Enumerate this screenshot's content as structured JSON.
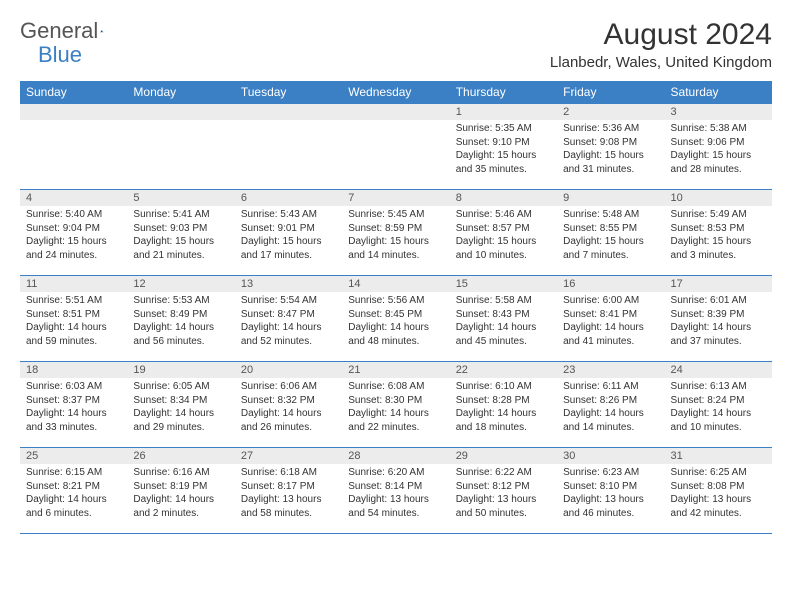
{
  "logo": {
    "text1": "General",
    "text2": "Blue"
  },
  "title": "August 2024",
  "location": "Llanbedr, Wales, United Kingdom",
  "colors": {
    "accent": "#3b7fc4",
    "header_bg": "#3b7fc4",
    "daynum_bg": "#ececec",
    "text": "#333333"
  },
  "day_headers": [
    "Sunday",
    "Monday",
    "Tuesday",
    "Wednesday",
    "Thursday",
    "Friday",
    "Saturday"
  ],
  "weeks": [
    [
      null,
      null,
      null,
      null,
      {
        "n": "1",
        "sr": "5:35 AM",
        "ss": "9:10 PM",
        "dl": "15 hours and 35 minutes."
      },
      {
        "n": "2",
        "sr": "5:36 AM",
        "ss": "9:08 PM",
        "dl": "15 hours and 31 minutes."
      },
      {
        "n": "3",
        "sr": "5:38 AM",
        "ss": "9:06 PM",
        "dl": "15 hours and 28 minutes."
      }
    ],
    [
      {
        "n": "4",
        "sr": "5:40 AM",
        "ss": "9:04 PM",
        "dl": "15 hours and 24 minutes."
      },
      {
        "n": "5",
        "sr": "5:41 AM",
        "ss": "9:03 PM",
        "dl": "15 hours and 21 minutes."
      },
      {
        "n": "6",
        "sr": "5:43 AM",
        "ss": "9:01 PM",
        "dl": "15 hours and 17 minutes."
      },
      {
        "n": "7",
        "sr": "5:45 AM",
        "ss": "8:59 PM",
        "dl": "15 hours and 14 minutes."
      },
      {
        "n": "8",
        "sr": "5:46 AM",
        "ss": "8:57 PM",
        "dl": "15 hours and 10 minutes."
      },
      {
        "n": "9",
        "sr": "5:48 AM",
        "ss": "8:55 PM",
        "dl": "15 hours and 7 minutes."
      },
      {
        "n": "10",
        "sr": "5:49 AM",
        "ss": "8:53 PM",
        "dl": "15 hours and 3 minutes."
      }
    ],
    [
      {
        "n": "11",
        "sr": "5:51 AM",
        "ss": "8:51 PM",
        "dl": "14 hours and 59 minutes."
      },
      {
        "n": "12",
        "sr": "5:53 AM",
        "ss": "8:49 PM",
        "dl": "14 hours and 56 minutes."
      },
      {
        "n": "13",
        "sr": "5:54 AM",
        "ss": "8:47 PM",
        "dl": "14 hours and 52 minutes."
      },
      {
        "n": "14",
        "sr": "5:56 AM",
        "ss": "8:45 PM",
        "dl": "14 hours and 48 minutes."
      },
      {
        "n": "15",
        "sr": "5:58 AM",
        "ss": "8:43 PM",
        "dl": "14 hours and 45 minutes."
      },
      {
        "n": "16",
        "sr": "6:00 AM",
        "ss": "8:41 PM",
        "dl": "14 hours and 41 minutes."
      },
      {
        "n": "17",
        "sr": "6:01 AM",
        "ss": "8:39 PM",
        "dl": "14 hours and 37 minutes."
      }
    ],
    [
      {
        "n": "18",
        "sr": "6:03 AM",
        "ss": "8:37 PM",
        "dl": "14 hours and 33 minutes."
      },
      {
        "n": "19",
        "sr": "6:05 AM",
        "ss": "8:34 PM",
        "dl": "14 hours and 29 minutes."
      },
      {
        "n": "20",
        "sr": "6:06 AM",
        "ss": "8:32 PM",
        "dl": "14 hours and 26 minutes."
      },
      {
        "n": "21",
        "sr": "6:08 AM",
        "ss": "8:30 PM",
        "dl": "14 hours and 22 minutes."
      },
      {
        "n": "22",
        "sr": "6:10 AM",
        "ss": "8:28 PM",
        "dl": "14 hours and 18 minutes."
      },
      {
        "n": "23",
        "sr": "6:11 AM",
        "ss": "8:26 PM",
        "dl": "14 hours and 14 minutes."
      },
      {
        "n": "24",
        "sr": "6:13 AM",
        "ss": "8:24 PM",
        "dl": "14 hours and 10 minutes."
      }
    ],
    [
      {
        "n": "25",
        "sr": "6:15 AM",
        "ss": "8:21 PM",
        "dl": "14 hours and 6 minutes."
      },
      {
        "n": "26",
        "sr": "6:16 AM",
        "ss": "8:19 PM",
        "dl": "14 hours and 2 minutes."
      },
      {
        "n": "27",
        "sr": "6:18 AM",
        "ss": "8:17 PM",
        "dl": "13 hours and 58 minutes."
      },
      {
        "n": "28",
        "sr": "6:20 AM",
        "ss": "8:14 PM",
        "dl": "13 hours and 54 minutes."
      },
      {
        "n": "29",
        "sr": "6:22 AM",
        "ss": "8:12 PM",
        "dl": "13 hours and 50 minutes."
      },
      {
        "n": "30",
        "sr": "6:23 AM",
        "ss": "8:10 PM",
        "dl": "13 hours and 46 minutes."
      },
      {
        "n": "31",
        "sr": "6:25 AM",
        "ss": "8:08 PM",
        "dl": "13 hours and 42 minutes."
      }
    ]
  ],
  "labels": {
    "sunrise": "Sunrise:",
    "sunset": "Sunset:",
    "daylight": "Daylight:"
  }
}
